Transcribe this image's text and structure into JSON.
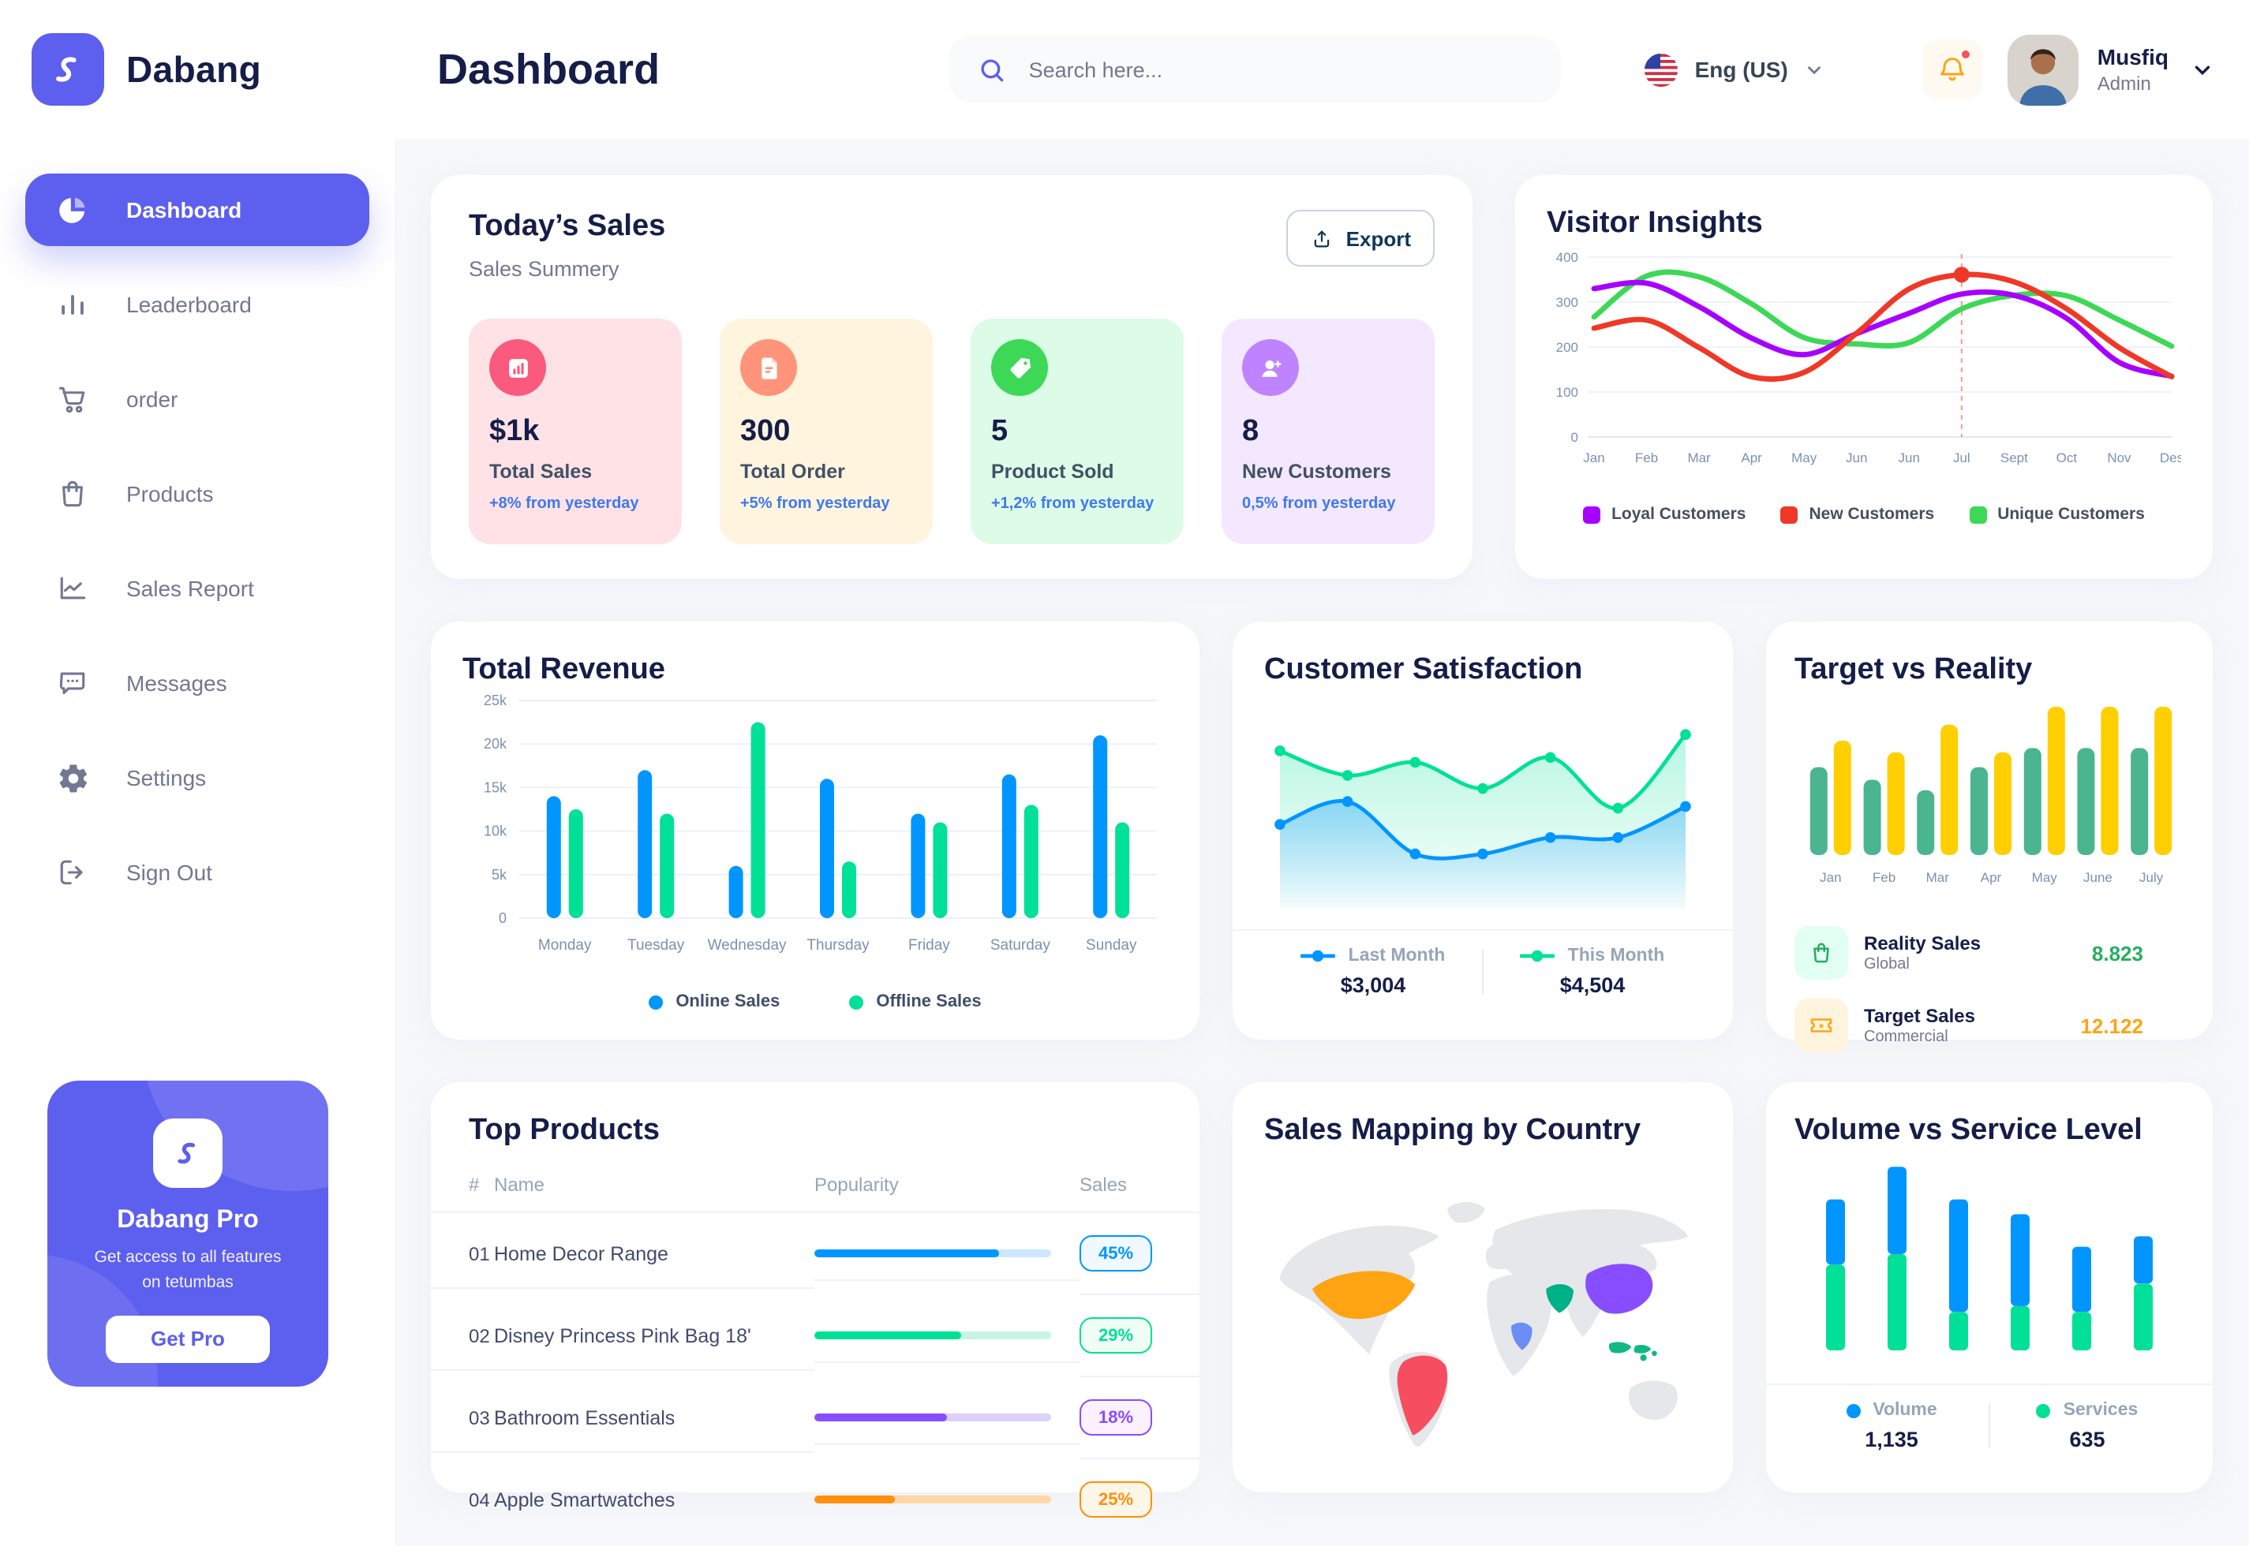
{
  "brand": {
    "name": "Dabang"
  },
  "header": {
    "title": "Dashboard",
    "search_placeholder": "Search here...",
    "language": "Eng (US)",
    "user": {
      "name": "Musfiq",
      "role": "Admin"
    }
  },
  "sidebar": {
    "items": [
      {
        "label": "Dashboard",
        "icon": "pie-chart-icon",
        "active": true
      },
      {
        "label": "Leaderboard",
        "icon": "bar-chart-icon",
        "active": false
      },
      {
        "label": "order",
        "icon": "cart-icon",
        "active": false
      },
      {
        "label": "Products",
        "icon": "bag-icon",
        "active": false
      },
      {
        "label": "Sales Report",
        "icon": "line-chart-icon",
        "active": false
      },
      {
        "label": "Messages",
        "icon": "message-icon",
        "active": false
      },
      {
        "label": "Settings",
        "icon": "gear-icon",
        "active": false
      },
      {
        "label": "Sign Out",
        "icon": "sign-out-icon",
        "active": false
      }
    ],
    "pro_card": {
      "title": "Dabang Pro",
      "subtitle": "Get access to all features on tetumbas",
      "button": "Get Pro"
    }
  },
  "todays_sales": {
    "title": "Today’s Sales",
    "subtitle": "Sales Summery",
    "export_label": "Export",
    "cards": [
      {
        "value": "$1k",
        "label": "Total Sales",
        "delta": "+8% from yesterday",
        "bg": "#FFE2E5",
        "circle": "#FA5A7D",
        "icon": "mini-bar-chart-icon"
      },
      {
        "value": "300",
        "label": "Total Order",
        "delta": "+5% from yesterday",
        "bg": "#FFF4DE",
        "circle": "#FF947A",
        "icon": "order-file-icon"
      },
      {
        "value": "5",
        "label": "Product Sold",
        "delta": "+1,2% from yesterday",
        "bg": "#DCFCE7",
        "circle": "#3CD856",
        "icon": "tag-icon"
      },
      {
        "value": "8",
        "label": "New Customers",
        "delta": "0,5% from yesterday",
        "bg": "#F3E8FF",
        "circle": "#BF83FF",
        "icon": "user-plus-icon"
      }
    ]
  },
  "chart_data": [
    {
      "id": "visitor_insights",
      "type": "line",
      "title": "Visitor Insights",
      "x": [
        "Jan",
        "Feb",
        "Mar",
        "Apr",
        "May",
        "Jun",
        "Jun",
        "Jul",
        "Sept",
        "Oct",
        "Nov",
        "Des"
      ],
      "ylim": [
        0,
        400
      ],
      "yticks": [
        0,
        100,
        200,
        300,
        400
      ],
      "grid": true,
      "legend_position": "bottom",
      "series": [
        {
          "name": "Loyal Customers",
          "color": "#A700FF",
          "values": [
            330,
            342,
            290,
            220,
            183,
            230,
            275,
            318,
            315,
            264,
            166,
            135
          ]
        },
        {
          "name": "New Customers",
          "color": "#EF3826",
          "values": [
            242,
            260,
            199,
            134,
            144,
            231,
            329,
            361,
            345,
            285,
            199,
            134
          ]
        },
        {
          "name": "Unique Customers",
          "color": "#3CD856",
          "values": [
            267,
            358,
            356,
            296,
            221,
            207,
            210,
            285,
            315,
            314,
            260,
            202
          ]
        }
      ],
      "marker": {
        "series_index": 1,
        "point_index": 7,
        "value": 361,
        "note": "red dot with dashed vertical line at Jul"
      }
    },
    {
      "id": "total_revenue",
      "type": "bar",
      "title": "Total Revenue",
      "categories": [
        "Monday",
        "Tuesday",
        "Wednesday",
        "Thursday",
        "Friday",
        "Saturday",
        "Sunday"
      ],
      "ylim": [
        0,
        25000
      ],
      "ytick_labels": [
        "0",
        "5k",
        "10k",
        "15k",
        "20k",
        "25k"
      ],
      "grid": true,
      "legend_position": "bottom",
      "series": [
        {
          "name": "Online Sales",
          "color": "#0095FF",
          "values": [
            14000,
            17000,
            6000,
            16000,
            12000,
            16500,
            21000
          ]
        },
        {
          "name": "Offline Sales",
          "color": "#00E096",
          "values": [
            12500,
            12000,
            22500,
            6500,
            11000,
            13000,
            11000
          ]
        }
      ]
    },
    {
      "id": "customer_satisfaction",
      "type": "area",
      "title": "Customer Satisfaction",
      "ylim": [
        0,
        110
      ],
      "legend_position": "bottom",
      "series": [
        {
          "name": "Last Month",
          "color": "#0095FF",
          "total": "$3,004",
          "values": [
            38,
            52,
            20,
            20,
            30,
            30,
            49
          ]
        },
        {
          "name": "This Month",
          "color": "#00E096",
          "total": "$4,504",
          "values": [
            83,
            68,
            76,
            60,
            79,
            48,
            93
          ]
        }
      ]
    },
    {
      "id": "target_vs_reality",
      "type": "bar",
      "title": "Target vs Reality",
      "categories": [
        "Jan",
        "Feb",
        "Mar",
        "Apr",
        "May",
        "June",
        "July"
      ],
      "ylim": [
        0,
        14
      ],
      "series": [
        {
          "name": "Reality Sales",
          "color": "#4AB58E",
          "values": [
            8.3,
            7.1,
            6.1,
            8.3,
            10.1,
            10.1,
            10.1
          ]
        },
        {
          "name": "Target Sales",
          "color": "#FFCF00",
          "values": [
            10.8,
            9.7,
            12.3,
            9.7,
            14,
            14,
            14
          ]
        }
      ],
      "legend": [
        {
          "label": "Reality Sales",
          "sublabel": "Global",
          "value": "8.823",
          "value_color": "#27AE60",
          "tile_bg": "#E2FFF3",
          "icon": "shopping-bag-icon"
        },
        {
          "label": "Target Sales",
          "sublabel": "Commercial",
          "value": "12.122",
          "value_color": "#FFA412",
          "tile_bg": "#FFF4DE",
          "icon": "ticket-icon"
        }
      ]
    },
    {
      "id": "volume_vs_service",
      "type": "stacked-bar",
      "title": "Volume vs Service Level",
      "ylim": [
        0,
        130
      ],
      "legend_position": "bottom",
      "series": [
        {
          "name": "Volume",
          "color": "#0095FF",
          "total": "1,135",
          "values": [
            44,
            59,
            76,
            62,
            44,
            32
          ]
        },
        {
          "name": "Services",
          "color": "#00E096",
          "total": "635",
          "values": [
            58,
            65,
            26,
            30,
            26,
            45
          ]
        }
      ]
    }
  ],
  "top_products": {
    "title": "Top Products",
    "columns": [
      "#",
      "Name",
      "Popularity",
      "Sales"
    ],
    "rows": [
      {
        "index": "01",
        "name": "Home Decor Range",
        "popularity": 78,
        "sales": "45%",
        "color": "#0095FF",
        "track": "#CDE7FF",
        "badge_bg": "#F0F9FF"
      },
      {
        "index": "02",
        "name": "Disney Princess Pink Bag 18'",
        "popularity": 62,
        "sales": "29%",
        "color": "#00E096",
        "track": "#C6F5E5",
        "badge_bg": "#F0FDF4"
      },
      {
        "index": "03",
        "name": "Bathroom Essentials",
        "popularity": 56,
        "sales": "18%",
        "color": "#884DFF",
        "track": "#DDD1FA",
        "badge_bg": "#FBF1FF"
      },
      {
        "index": "04",
        "name": "Apple Smartwatches",
        "popularity": 34,
        "sales": "25%",
        "color": "#FF8F0D",
        "track": "#FFD8A6",
        "badge_bg": "#FEF6E6"
      }
    ]
  },
  "sales_mapping": {
    "title": "Sales Mapping by Country",
    "countries": [
      {
        "name": "United States",
        "color": "#FFA412"
      },
      {
        "name": "Brazil",
        "color": "#F64E60"
      },
      {
        "name": "China",
        "color": "#884DFF"
      },
      {
        "name": "Saudi Arabia",
        "color": "#00B086"
      },
      {
        "name": "DR Congo",
        "color": "#6B8DF5"
      },
      {
        "name": "Indonesia",
        "color": "#10B981"
      }
    ]
  },
  "colors": {
    "accent": "#5D5FEF",
    "heading": "#151D48",
    "muted": "#737791",
    "axis_label": "#7B91B0",
    "delta_blue": "#4079ED",
    "bell_orange": "#FFA412",
    "content_bg": "#F7F8FB"
  }
}
